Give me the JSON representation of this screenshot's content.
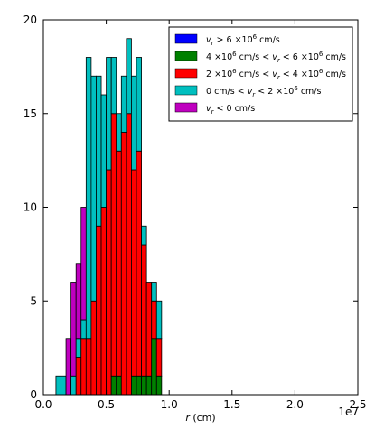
{
  "chart_data": {
    "type": "bar",
    "subtype": "stacked-histogram",
    "title": "",
    "xlabel": "r  (cm)",
    "ylabel": "",
    "x_offset_label": "1e7",
    "xlim": [
      0,
      25000000
    ],
    "ylim": [
      0,
      20
    ],
    "x_ticks": [
      0,
      5000000,
      10000000,
      15000000,
      20000000,
      25000000
    ],
    "x_tick_labels": [
      "0.0",
      "0.5",
      "1.0",
      "1.5",
      "2.0",
      "2.5"
    ],
    "y_ticks": [
      0,
      5,
      10,
      15,
      20
    ],
    "y_tick_labels": [
      "0",
      "5",
      "10",
      "15",
      "20"
    ],
    "grid": false,
    "legend_position": "top-right",
    "bin_start": 1000000,
    "bin_width": 400000,
    "series": [
      {
        "name": "v_r > 6×10^6 cm/s",
        "color": "#0000ff",
        "values": [
          0,
          0,
          0,
          0,
          0,
          0,
          0,
          0,
          0,
          0,
          0,
          0,
          0,
          0,
          0,
          0,
          0,
          0,
          0,
          0,
          0,
          0
        ]
      },
      {
        "name": "4×10^6 cm/s < v_r < 6×10^6 cm/s",
        "color": "#008000",
        "values": [
          0,
          0,
          0,
          0,
          0,
          0,
          0,
          0,
          0,
          0,
          0,
          1,
          1,
          0,
          0,
          1,
          1,
          1,
          1,
          3,
          1,
          0
        ]
      },
      {
        "name": "2×10^6 cm/s < v_r < 4×10^6 cm/s",
        "color": "#ff0000",
        "values": [
          0,
          0,
          0,
          0,
          2,
          3,
          3,
          5,
          9,
          10,
          12,
          14,
          12,
          14,
          15,
          11,
          12,
          7,
          5,
          2,
          2,
          0
        ]
      },
      {
        "name": "0 cm/s < v_r < 2×10^6 cm/s",
        "color": "#00bfbf",
        "values": [
          1,
          1,
          0,
          1,
          1,
          1,
          15,
          12,
          8,
          6,
          6,
          3,
          2,
          3,
          4,
          5,
          5,
          1,
          0,
          1,
          2,
          0
        ]
      },
      {
        "name": "v_r < 0 cm/s",
        "color": "#bf00bf",
        "values": [
          0,
          0,
          3,
          5,
          4,
          6,
          0,
          0,
          0,
          0,
          0,
          0,
          0,
          0,
          0,
          0,
          0,
          0,
          0,
          0,
          0,
          0
        ]
      }
    ],
    "legend": [
      {
        "key": "blue",
        "label_prefix": "v",
        "sub": "r",
        "parts": [
          " > 6 ×10",
          "6",
          "  cm/s"
        ]
      },
      {
        "key": "green",
        "label_prefix": "4 ×10",
        "sup_first": "6",
        "parts": [
          "  cm/s  < ",
          "v",
          "r",
          " < 6 ×10",
          "6",
          "  cm/s"
        ]
      },
      {
        "key": "red",
        "label_prefix": "2 ×10",
        "sup_first": "6",
        "parts": [
          "  cm/s  < ",
          "v",
          "r",
          " < 4 ×10",
          "6",
          "  cm/s"
        ]
      },
      {
        "key": "cyan",
        "label_prefix": "0 cm/s  < ",
        "parts": [
          "v",
          "r",
          " < 2 ×10",
          "6",
          "  cm/s"
        ]
      },
      {
        "key": "magenta",
        "label_prefix": "v",
        "sub": "r",
        "parts": [
          "  < 0 cm/s"
        ]
      }
    ]
  }
}
